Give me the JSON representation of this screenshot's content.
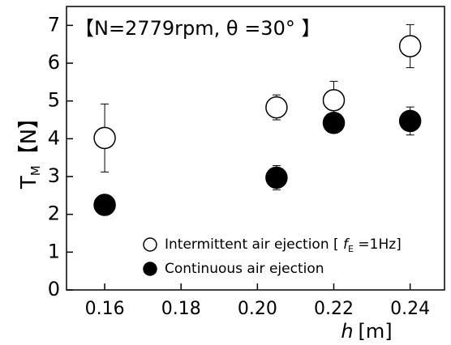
{
  "chart_data": {
    "type": "scatter",
    "title": "【N=2779rpm, θ =30°  】",
    "xlabel": [
      "h",
      "[m]"
    ],
    "ylabel": [
      "T",
      "M",
      "【N】"
    ],
    "xlim": [
      0.15,
      0.249
    ],
    "ylim": [
      0,
      7.5
    ],
    "xticks": [
      0.16,
      0.18,
      {
        "value": 0.2,
        "label": "0.20"
      },
      0.22,
      0.24
    ],
    "yticks": [
      0,
      1,
      2,
      3,
      4,
      5,
      6,
      7
    ],
    "series": [
      {
        "name": [
          "Intermittent air ejection [ ",
          "f",
          "E",
          " =1Hz]"
        ],
        "color": "#ffffff",
        "x": [
          0.16,
          0.205,
          0.22,
          0.24
        ],
        "values": [
          4.02,
          4.83,
          5.02,
          6.45
        ],
        "errors": [
          0.9,
          0.33,
          0.5,
          0.57
        ]
      },
      {
        "name": [
          "Continuous air ejection"
        ],
        "color": "#000000",
        "x": [
          0.16,
          0.205,
          0.22,
          0.24
        ],
        "values": [
          2.25,
          2.97,
          4.42,
          4.47
        ],
        "errors": [
          0.05,
          0.32,
          0.05,
          0.37
        ]
      }
    ]
  }
}
